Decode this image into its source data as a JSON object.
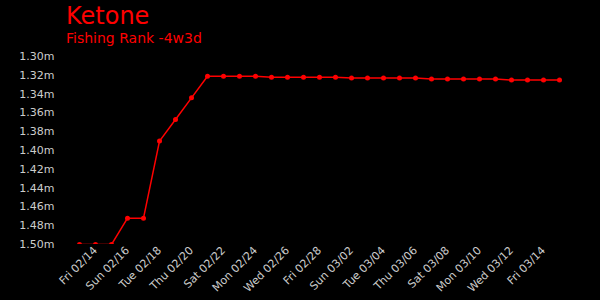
{
  "chart_data": {
    "type": "line",
    "title": "Ketone",
    "subtitle": "Fishing Rank -4w3d",
    "color": "#ff0000",
    "marker": "circle",
    "grid": false,
    "categories": [
      null,
      "Fri 02/14",
      null,
      "Sun 02/16",
      null,
      "Tue 02/18",
      null,
      "Thu 02/20",
      null,
      "Sat 02/22",
      null,
      "Mon 02/24",
      null,
      "Wed 02/26",
      null,
      "Fri 02/28",
      null,
      "Sun 03/02",
      null,
      "Tue 03/04",
      null,
      "Thu 03/06",
      null,
      "Sat 03/08",
      null,
      "Mon 03/10",
      null,
      "Wed 03/12",
      null,
      "Fri 03/14",
      null
    ],
    "values": [
      1.5,
      1.5,
      1.5,
      1.472,
      1.472,
      1.39,
      1.367,
      1.344,
      1.321,
      1.321,
      1.321,
      1.321,
      1.322,
      1.322,
      1.322,
      1.322,
      1.322,
      1.323,
      1.323,
      1.323,
      1.323,
      1.323,
      1.324,
      1.324,
      1.324,
      1.324,
      1.324,
      1.325,
      1.325,
      1.325,
      1.325
    ],
    "ylim": [
      1.3,
      1.5
    ],
    "yticks": [
      {
        "value": 1.3,
        "label": "1.30m"
      },
      {
        "value": 1.32,
        "label": "1.32m"
      },
      {
        "value": 1.34,
        "label": "1.34m"
      },
      {
        "value": 1.36,
        "label": "1.36m"
      },
      {
        "value": 1.38,
        "label": "1.38m"
      },
      {
        "value": 1.4,
        "label": "1.40m"
      },
      {
        "value": 1.42,
        "label": "1.42m"
      },
      {
        "value": 1.44,
        "label": "1.44m"
      },
      {
        "value": 1.46,
        "label": "1.46m"
      },
      {
        "value": 1.48,
        "label": "1.48m"
      },
      {
        "value": 1.5,
        "label": "1.50m"
      }
    ]
  }
}
